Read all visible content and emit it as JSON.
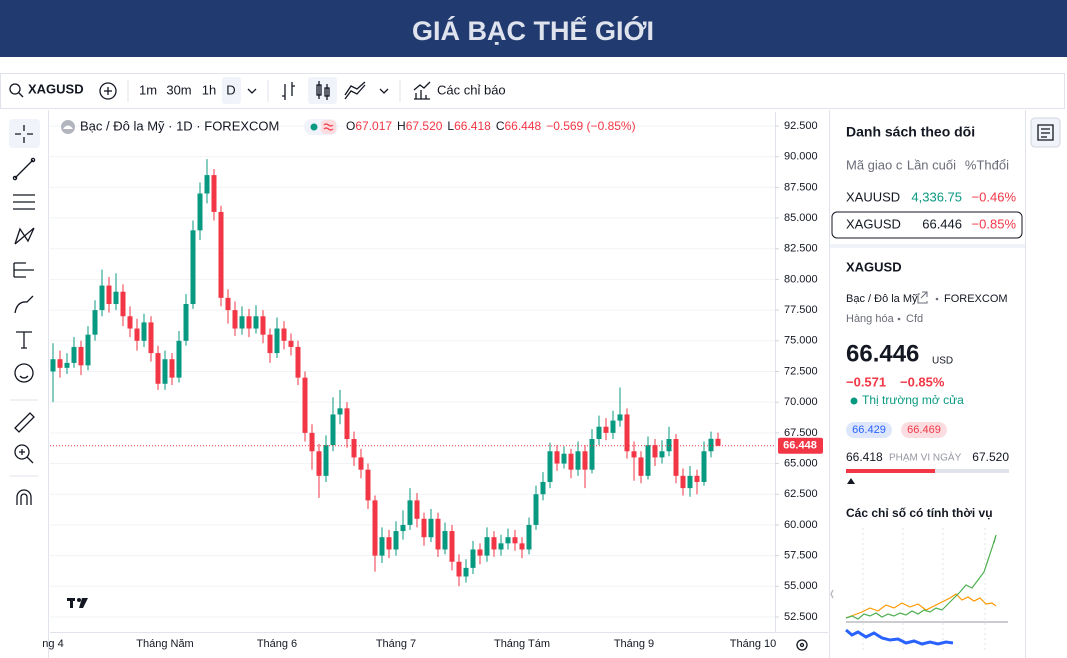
{
  "header": {
    "title": "GIÁ BẠC THẾ GIỚI"
  },
  "toolbar": {
    "symbol": "XAGUSD",
    "intervals": [
      "1m",
      "30m",
      "1h",
      "D"
    ],
    "indicators": "Các chỉ báo"
  },
  "chart_data": {
    "type": "candlestick",
    "title": "Bạc / Đô la Mỹ · 1D · FOREXCOM",
    "ohlc_legend": [
      {
        "key": "O",
        "value": "67.017"
      },
      {
        "key": "H",
        "value": "67.520"
      },
      {
        "key": "L",
        "value": "66.418"
      },
      {
        "key": "C",
        "value": "66.448"
      }
    ],
    "change": "−0.569 (−0.85%)",
    "categories": [
      "ng 4",
      null,
      null,
      null,
      null,
      null,
      null,
      null,
      null,
      null,
      null,
      null,
      null,
      null,
      null,
      null,
      "Tháng Năm",
      null,
      null,
      null,
      null,
      null,
      null,
      null,
      null,
      null,
      null,
      null,
      null,
      null,
      null,
      null,
      "Tháng 6",
      null,
      null,
      null,
      null,
      null,
      null,
      null,
      null,
      null,
      null,
      null,
      null,
      null,
      null,
      null,
      null,
      "Tháng 7",
      null,
      null,
      null,
      null,
      null,
      null,
      null,
      null,
      null,
      null,
      null,
      null,
      null,
      null,
      null,
      null,
      null,
      "Tháng Tám",
      null,
      null,
      null,
      null,
      null,
      null,
      null,
      null,
      null,
      null,
      null,
      null,
      null,
      null,
      null,
      "Tháng 9",
      null,
      null,
      null,
      null,
      null,
      null,
      null,
      null,
      null,
      null,
      null,
      null,
      null,
      null,
      null,
      null,
      "Tháng 10",
      null,
      null
    ],
    "open": [
      72.5,
      73.5,
      72.8,
      73.2,
      74.5,
      73.0,
      75.5,
      77.5,
      79.5,
      78.0,
      79.0,
      77.0,
      76.0,
      75.0,
      76.5,
      74.0,
      71.5,
      73.5,
      72.0,
      75.0,
      78.0,
      84.0,
      87.0,
      88.5,
      85.5,
      78.5,
      77.5,
      76.0,
      77.0,
      76.0,
      77.0,
      75.5,
      74.0,
      76.0,
      75.0,
      74.5,
      72.0,
      67.5,
      66.0,
      64.0,
      66.5,
      69.0,
      69.5,
      67.0,
      65.5,
      64.5,
      62.0,
      57.5,
      59.0,
      58.0,
      59.5,
      60.0,
      62.0,
      60.5,
      59.0,
      60.5,
      58.0,
      59.5,
      57.0,
      55.8,
      56.5,
      58.0,
      57.5,
      59.0,
      58.0,
      58.5,
      59.0,
      58.5,
      58.0,
      60.0,
      62.5,
      63.5,
      66.0,
      65.0,
      65.8,
      64.5,
      66.0,
      64.5,
      67.0,
      68.0,
      67.5,
      68.5,
      69.0,
      66.0,
      65.5,
      64.0,
      66.5,
      65.5,
      66.0,
      67.0,
      64.0,
      63.0,
      64.0,
      63.5,
      66.0,
      67.017,
      null,
      null,
      null,
      null,
      null,
      null,
      null
    ],
    "high": [
      74.8,
      74.2,
      74.0,
      75.3,
      75.0,
      76.2,
      78.3,
      80.8,
      80.2,
      80.5,
      79.6,
      77.8,
      76.8,
      77.2,
      77.0,
      74.6,
      74.2,
      74.0,
      75.8,
      78.8,
      84.8,
      87.9,
      89.8,
      89.0,
      86.0,
      79.2,
      78.2,
      77.8,
      77.6,
      77.9,
      77.5,
      76.0,
      76.9,
      76.6,
      75.6,
      75.0,
      72.5,
      68.2,
      66.6,
      67.3,
      70.4,
      71.0,
      70.0,
      67.6,
      66.2,
      65.0,
      62.4,
      59.8,
      59.6,
      60.3,
      61.2,
      63.0,
      62.6,
      61.0,
      61.3,
      61.0,
      60.2,
      60.0,
      57.6,
      57.2,
      58.7,
      58.5,
      59.8,
      59.5,
      59.2,
      59.7,
      59.6,
      59.0,
      60.6,
      63.2,
      64.3,
      66.7,
      66.5,
      66.4,
      66.2,
      66.8,
      66.5,
      67.8,
      68.9,
      68.7,
      69.3,
      71.2,
      69.5,
      66.8,
      66.0,
      67.2,
      67.0,
      66.9,
      68.0,
      67.4,
      64.6,
      64.8,
      64.5,
      66.8,
      67.6,
      67.52,
      null,
      null,
      null,
      null,
      null,
      null,
      null
    ],
    "low": [
      70.0,
      72.0,
      72.3,
      72.8,
      72.2,
      72.6,
      75.0,
      77.0,
      77.3,
      77.5,
      76.2,
      75.3,
      74.2,
      74.5,
      73.3,
      71.0,
      71.0,
      71.4,
      71.6,
      74.6,
      77.6,
      83.2,
      86.2,
      84.8,
      77.8,
      76.4,
      75.4,
      75.5,
      75.3,
      75.6,
      74.8,
      73.2,
      73.6,
      74.3,
      73.8,
      71.4,
      66.8,
      64.5,
      62.2,
      63.5,
      66.0,
      68.2,
      66.3,
      64.8,
      63.8,
      61.3,
      56.2,
      56.9,
      57.3,
      57.5,
      58.8,
      59.6,
      59.8,
      58.3,
      58.6,
      57.4,
      57.6,
      56.3,
      55.0,
      55.3,
      56.0,
      56.8,
      57.0,
      57.4,
      57.5,
      58.0,
      57.9,
      57.3,
      57.6,
      59.6,
      62.0,
      63.0,
      64.4,
      64.6,
      63.8,
      64.0,
      63.0,
      64.2,
      66.5,
      66.9,
      67.0,
      68.0,
      65.4,
      63.6,
      63.4,
      63.7,
      64.8,
      65.0,
      65.6,
      63.4,
      62.4,
      62.3,
      62.5,
      63.2,
      65.5,
      66.418,
      null,
      null,
      null,
      null,
      null,
      null,
      null
    ],
    "close": [
      73.5,
      72.8,
      73.2,
      74.5,
      73.0,
      75.5,
      77.5,
      79.5,
      78.0,
      79.0,
      77.0,
      76.0,
      75.0,
      76.5,
      74.0,
      71.5,
      73.5,
      72.0,
      75.0,
      78.0,
      84.0,
      87.0,
      88.5,
      85.5,
      78.5,
      77.5,
      76.0,
      77.0,
      76.0,
      77.0,
      75.5,
      74.0,
      76.0,
      75.0,
      74.5,
      72.0,
      67.5,
      66.0,
      64.0,
      66.5,
      69.0,
      69.5,
      67.0,
      65.5,
      64.5,
      62.0,
      57.5,
      59.0,
      58.0,
      59.5,
      60.0,
      62.0,
      60.5,
      59.0,
      60.5,
      58.0,
      59.5,
      57.0,
      55.8,
      56.5,
      58.0,
      57.5,
      59.0,
      58.0,
      58.5,
      59.0,
      58.5,
      58.0,
      60.0,
      62.5,
      63.5,
      66.0,
      65.0,
      65.8,
      64.5,
      66.0,
      64.5,
      67.0,
      68.0,
      67.5,
      68.5,
      69.0,
      66.0,
      65.5,
      64.0,
      66.5,
      65.5,
      66.0,
      67.0,
      64.0,
      63.0,
      64.0,
      63.5,
      66.0,
      67.017,
      66.448,
      null,
      null,
      null,
      null,
      null,
      null,
      null
    ],
    "up_color": "#089981",
    "down_color": "#f23645",
    "ylim": [
      51.44,
      93.64
    ],
    "yticks": [
      {
        "value": 52.5,
        "label": "52.500"
      },
      {
        "value": 55,
        "label": "55.000"
      },
      {
        "value": 57.5,
        "label": "57.500"
      },
      {
        "value": 60,
        "label": "60.000"
      },
      {
        "value": 62.5,
        "label": "62.500"
      },
      {
        "value": 65,
        "label": "65.000"
      },
      {
        "value": 67.5,
        "label": "67.500"
      },
      {
        "value": 70,
        "label": "70.000"
      },
      {
        "value": 72.5,
        "label": "72.500"
      },
      {
        "value": 75,
        "label": "75.000"
      },
      {
        "value": 77.5,
        "label": "77.500"
      },
      {
        "value": 80,
        "label": "80.000"
      },
      {
        "value": 82.5,
        "label": "82.500"
      },
      {
        "value": 85,
        "label": "85.000"
      },
      {
        "value": 87.5,
        "label": "87.500"
      },
      {
        "value": 90,
        "label": "90.000"
      },
      {
        "value": 92.5,
        "label": "92.500"
      }
    ],
    "grid": true
  },
  "watchlist": {
    "title": "Danh sách theo dõi",
    "columns": [
      "Mã giao c",
      "Lần cuối",
      "%Thđổi"
    ],
    "rows": [
      [
        "XAUUSD",
        "4,336.75",
        "−0.46%"
      ],
      [
        "XAGUSD",
        "66.446",
        "−0.85%"
      ]
    ]
  },
  "details": {
    "symbol": "XAGUSD",
    "name": "Bạc / Đô la Mỹ",
    "exchange": "FOREXCOM",
    "category": "Hàng hóa",
    "kind": "Cfd",
    "price": "66.446",
    "currency": "USD",
    "change": "−0.571",
    "change_pct": "−0.85%",
    "status": "Thị trường mở cửa",
    "bid": "66.429",
    "ask": "66.469",
    "day_low": "66.418",
    "range_label": "PHẠM VI NGÀY",
    "day_high": "67.520",
    "seasonal_title": "Các chỉ số có tính thời vụ"
  }
}
